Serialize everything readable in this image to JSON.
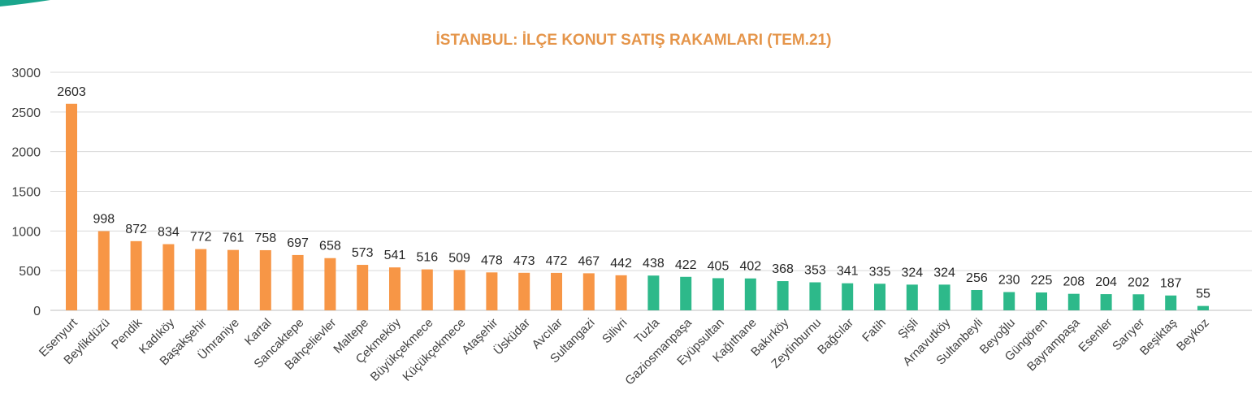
{
  "chart_data": {
    "type": "bar",
    "title": "İSTANBUL: İLÇE KONUT SATIŞ RAKAMLARI (TEM.21)",
    "xlabel": "",
    "ylabel": "",
    "ylim": [
      0,
      3000
    ],
    "yticks": [
      0,
      500,
      1000,
      1500,
      2000,
      2500,
      3000
    ],
    "grid": true,
    "legend": "none",
    "categories": [
      "Esenyurt",
      "Beylikdüzü",
      "Pendik",
      "Kadıköy",
      "Başakşehir",
      "Ümraniye",
      "Kartal",
      "Sancaktepe",
      "Bahçelievler",
      "Maltepe",
      "Çekmeköy",
      "Büyükçekmece",
      "Küçükçekmece",
      "Ataşehir",
      "Üsküdar",
      "Avcılar",
      "Sultangazi",
      "Silivri",
      "Tuzla",
      "Gaziosmanpaşa",
      "Eyüpsultan",
      "Kağıthane",
      "Bakırköy",
      "Zeytinburnu",
      "Bağcılar",
      "Fatih",
      "Şişli",
      "Arnavutköy",
      "Sultanbeyli",
      "Beyoğlu",
      "Güngören",
      "Bayrampaşa",
      "Esenler",
      "Sarıyer",
      "Beşiktaş",
      "Beykoz"
    ],
    "values": [
      2603,
      998,
      872,
      834,
      772,
      761,
      758,
      697,
      658,
      573,
      541,
      516,
      509,
      478,
      473,
      472,
      467,
      442,
      438,
      422,
      405,
      402,
      368,
      353,
      341,
      335,
      324,
      324,
      256,
      230,
      225,
      208,
      204,
      202,
      187,
      55
    ],
    "bar_colors": {
      "first_group": "#F79646",
      "second_group": "#2DB98A"
    },
    "first_group_count": 18,
    "title_color": "#E5954A",
    "grid_color": "#D9D9D9",
    "accent_shape_color": "#1AA58C"
  }
}
